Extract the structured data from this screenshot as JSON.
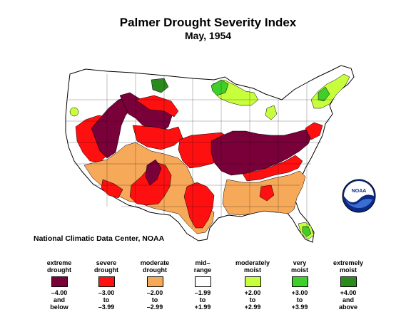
{
  "title": "Palmer Drought Severity Index",
  "subtitle": "May, 1954",
  "source": "National Climatic Data Center, NOAA",
  "logo_text": "NOAA",
  "colors": {
    "extreme_drought": "#7a003a",
    "severe_drought": "#ff1010",
    "moderate_drought": "#f7a95a",
    "mid_range": "#ffffff",
    "moderately_moist": "#c8ff3c",
    "very_moist": "#3ecf2a",
    "extremely_moist": "#2a8a1e"
  },
  "legend": [
    {
      "label": "extreme drought",
      "label_lines": [
        "extreme",
        "drought"
      ],
      "range_lines": [
        "–4.00",
        "and",
        "below"
      ],
      "color": "#7a003a"
    },
    {
      "label": "severe drought",
      "label_lines": [
        "severe",
        "drought"
      ],
      "range_lines": [
        "–3.00",
        "to",
        "–3.99"
      ],
      "color": "#ff1010"
    },
    {
      "label": "moderate drought",
      "label_lines": [
        "moderate",
        "drought"
      ],
      "range_lines": [
        "–2.00",
        "to",
        "–2.99"
      ],
      "color": "#f7a95a"
    },
    {
      "label": "mid-range",
      "label_lines": [
        "mid–",
        "range"
      ],
      "range_lines": [
        "–1.99",
        "to",
        "+1.99"
      ],
      "color": "#ffffff"
    },
    {
      "label": "moderately moist",
      "label_lines": [
        "moderately",
        "moist"
      ],
      "range_lines": [
        "+2.00",
        "to",
        "+2.99"
      ],
      "color": "#c8ff3c"
    },
    {
      "label": "very moist",
      "label_lines": [
        "very",
        "moist"
      ],
      "range_lines": [
        "+3.00",
        "to",
        "+3.99"
      ],
      "color": "#3ecf2a"
    },
    {
      "label": "extremely moist",
      "label_lines": [
        "extremely",
        "moist"
      ],
      "range_lines": [
        "+4.00",
        "and",
        "above"
      ],
      "color": "#2a8a1e"
    }
  ],
  "regions": [
    {
      "name": "pacific-northwest",
      "category": "mid_range"
    },
    {
      "name": "northern-rockies",
      "category": "extreme_drought"
    },
    {
      "name": "great-basin",
      "category": "extreme_drought"
    },
    {
      "name": "colorado-plateau",
      "category": "severe_drought"
    },
    {
      "name": "southwest",
      "category": "moderate_drought"
    },
    {
      "name": "southern-plains",
      "category": "severe_drought"
    },
    {
      "name": "central-plains",
      "category": "severe_drought"
    },
    {
      "name": "ohio-valley",
      "category": "extreme_drought"
    },
    {
      "name": "southeast",
      "category": "moderate_drought"
    },
    {
      "name": "upper-midwest",
      "category": "moderately_moist"
    },
    {
      "name": "northeast",
      "category": "moderately_moist"
    },
    {
      "name": "florida",
      "category": "very_moist"
    },
    {
      "name": "north-dakota-spot",
      "category": "extremely_moist"
    }
  ]
}
